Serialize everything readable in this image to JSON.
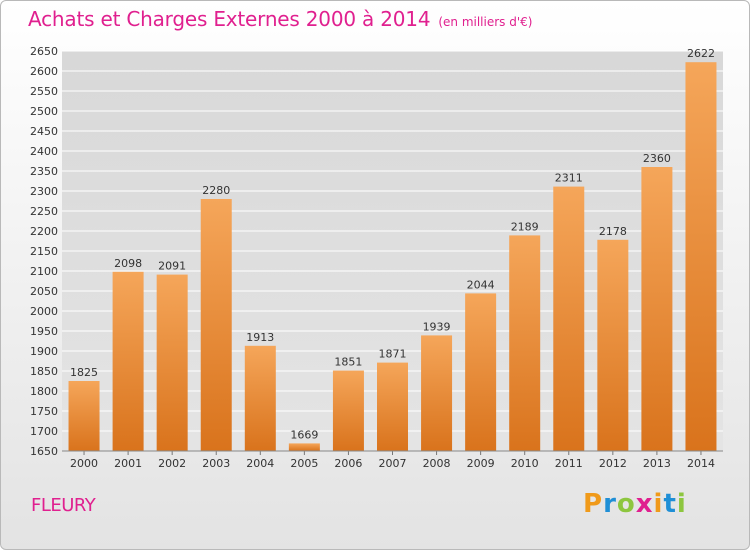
{
  "header": {
    "title": "Achats et Charges Externes 2000 à 2014",
    "subtitle": "(en milliers d'€)"
  },
  "footer": {
    "city": "FLEURY",
    "logo_letters": [
      "P",
      "r",
      "o",
      "x",
      "i",
      "t",
      "i"
    ],
    "logo_colors": [
      "#f09a1a",
      "#1f8fd6",
      "#8dc63f",
      "#e0208f",
      "#f09a1a",
      "#1f8fd6",
      "#8dc63f"
    ]
  },
  "colors": {
    "title": "#e0208f",
    "bar_top": "#f5a65a",
    "bar_bottom": "#d9731c",
    "grid": "#ffffff",
    "axis_text": "#333333"
  },
  "chart_data": {
    "type": "bar",
    "title": "Achats et Charges Externes 2000 à 2014",
    "subtitle": "(en milliers d'€)",
    "xlabel": "",
    "ylabel": "",
    "categories": [
      "2000",
      "2001",
      "2002",
      "2003",
      "2004",
      "2005",
      "2006",
      "2007",
      "2008",
      "2009",
      "2010",
      "2011",
      "2012",
      "2013",
      "2014"
    ],
    "values": [
      1825,
      2098,
      2091,
      2280,
      1913,
      1669,
      1851,
      1871,
      1939,
      2044,
      2189,
      2311,
      2178,
      2360,
      2622
    ],
    "ylim": [
      1650,
      2650
    ],
    "ytick_step": 50,
    "grid": true,
    "legend": "none"
  }
}
